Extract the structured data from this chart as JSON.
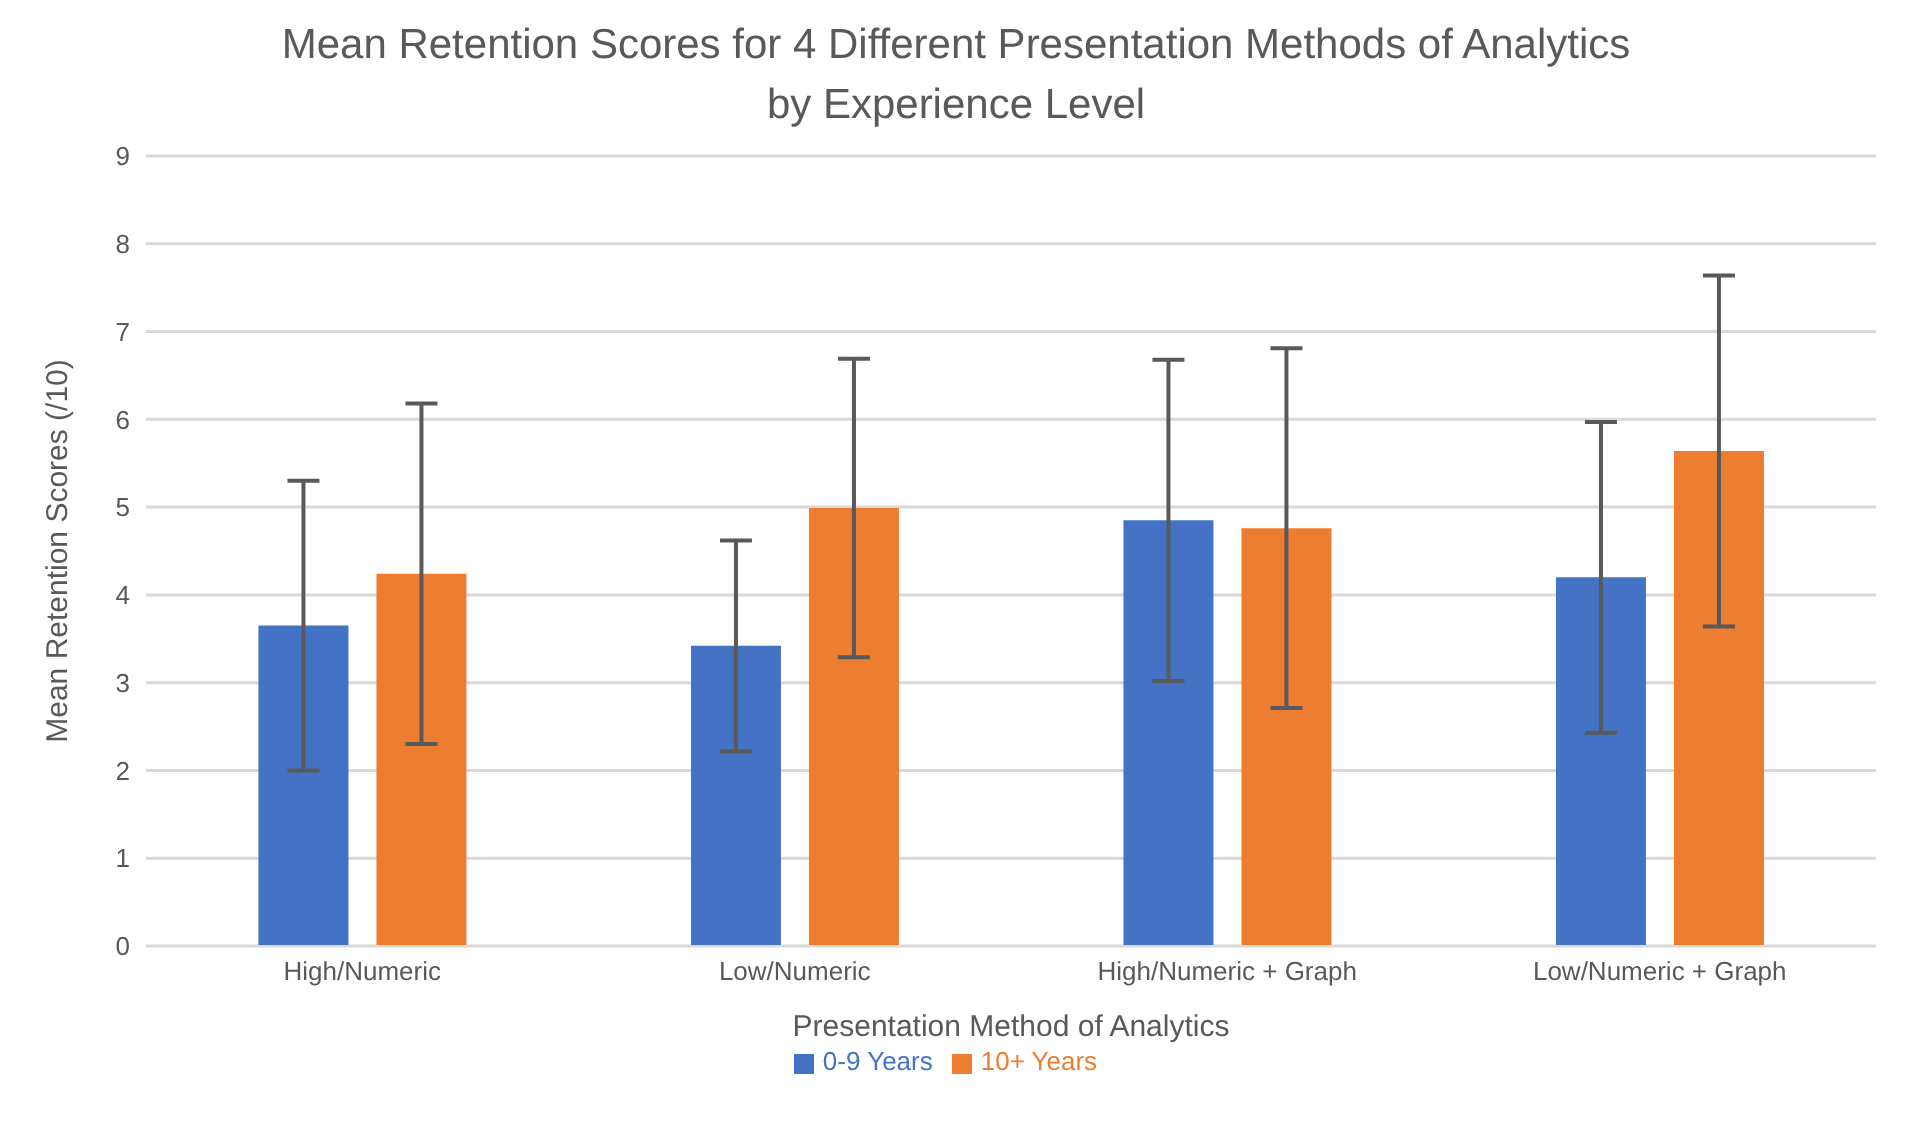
{
  "chart_data": {
    "type": "bar",
    "title": "Mean Retention Scores for 4 Different Presentation Methods of Analytics\nby Experience Level",
    "xlabel": "Presentation Method of Analytics",
    "ylabel": "Mean Retention Scores (/10)",
    "categories": [
      "High/Numeric",
      "Low/Numeric",
      "High/Numeric + Graph",
      "Low/Numeric + Graph"
    ],
    "series": [
      {
        "name": "0-9 Years",
        "color": "#4472c4",
        "values": [
          3.65,
          3.42,
          4.85,
          4.2
        ],
        "errors": [
          1.65,
          1.2,
          1.83,
          1.77
        ]
      },
      {
        "name": "10+ Years",
        "color": "#ed7d31",
        "values": [
          4.24,
          4.99,
          4.76,
          5.64
        ],
        "errors": [
          1.94,
          1.7,
          2.05,
          2.0
        ]
      }
    ],
    "ylim": [
      0,
      9
    ],
    "yticks": [
      0,
      1,
      2,
      3,
      4,
      5,
      6,
      7,
      8,
      9
    ],
    "grid": "y",
    "legend": "bottom"
  }
}
